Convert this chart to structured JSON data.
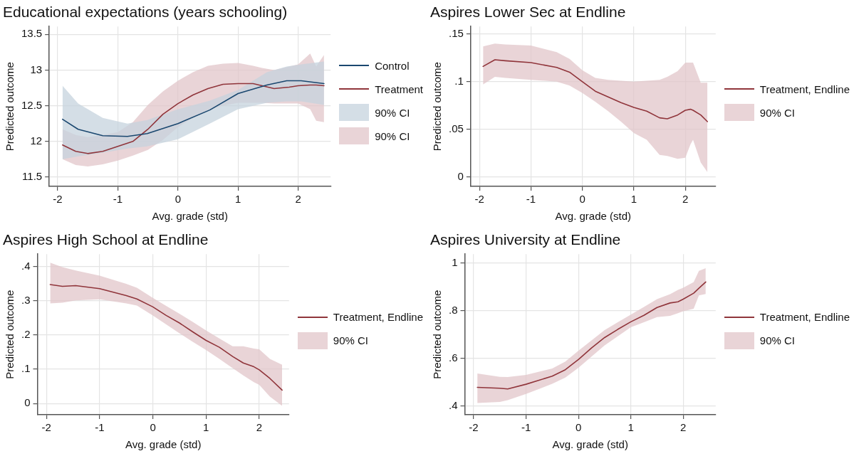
{
  "chart_data": [
    {
      "type": "line",
      "title": "Educational expectations (years schooling)",
      "xlabel": "Avg. grade (std)",
      "ylabel": "Predicted outcome",
      "xlim": [
        -2.14,
        2.54
      ],
      "ylim": [
        11.37,
        13.61
      ],
      "xticks": [
        -2,
        -1,
        0,
        1,
        2
      ],
      "yticks": [
        11.5,
        12,
        12.5,
        13,
        13.5
      ],
      "grid": true,
      "legend": "right",
      "marker": "none",
      "line_style": "solid",
      "series": [
        {
          "name": "Control",
          "color": "#1a476f",
          "x": [
            -1.92,
            -1.66,
            -1.25,
            -0.84,
            -0.51,
            0,
            0.53,
            1.0,
            1.48,
            1.81,
            2.05,
            2.43
          ],
          "values": [
            12.31,
            12.17,
            12.08,
            12.07,
            12.11,
            12.25,
            12.44,
            12.67,
            12.79,
            12.85,
            12.85,
            12.81
          ],
          "upper": [
            12.78,
            12.53,
            12.33,
            12.25,
            12.3,
            12.45,
            12.57,
            12.72,
            12.97,
            13.05,
            13.08,
            13.12
          ],
          "lower": [
            11.75,
            11.79,
            11.84,
            11.9,
            11.93,
            12.03,
            12.25,
            12.45,
            12.54,
            12.56,
            12.56,
            12.51
          ]
        },
        {
          "name": "Treatment",
          "color": "#90353b",
          "x": [
            -1.92,
            -1.7,
            -1.5,
            -1.25,
            -1.0,
            -0.75,
            -0.5,
            -0.25,
            0,
            0.25,
            0.5,
            0.75,
            1.0,
            1.25,
            1.4,
            1.6,
            1.85,
            2.0,
            2.2,
            2.3,
            2.43
          ],
          "values": [
            11.95,
            11.86,
            11.83,
            11.86,
            11.93,
            12.0,
            12.17,
            12.38,
            12.53,
            12.65,
            12.74,
            12.8,
            12.81,
            12.81,
            12.78,
            12.74,
            12.76,
            12.78,
            12.79,
            12.79,
            12.78
          ],
          "upper": [
            12.17,
            12.09,
            12.06,
            12.09,
            12.13,
            12.27,
            12.51,
            12.7,
            12.85,
            12.97,
            13.06,
            13.09,
            13.1,
            13.06,
            13.03,
            13.0,
            13.05,
            13.08,
            13.23,
            13.05,
            13.21
          ],
          "lower": [
            11.75,
            11.67,
            11.65,
            11.68,
            11.73,
            11.8,
            11.88,
            12.02,
            12.2,
            12.33,
            12.44,
            12.5,
            12.54,
            12.54,
            12.54,
            12.53,
            12.53,
            12.53,
            12.45,
            12.29,
            12.27
          ]
        },
        {
          "type": "area",
          "name": "90% CI",
          "color": "#c5d3dd"
        },
        {
          "type": "area",
          "name": "90% CI",
          "color": "#e2c6c9"
        }
      ]
    },
    {
      "type": "line",
      "title": "Aspires Lower Sec at Endline",
      "xlabel": "Avg. grade (std)",
      "ylabel": "Predicted outcome",
      "xlim": [
        -2.17,
        2.59
      ],
      "ylim": [
        -0.01,
        0.158
      ],
      "xticks": [
        -2,
        -1,
        0,
        1,
        2
      ],
      "yticks": [
        0,
        {
          "value": 0.05,
          "label": ".05"
        },
        {
          "value": 0.1,
          "label": ".1"
        },
        {
          "value": 0.15,
          "label": ".15"
        }
      ],
      "grid": true,
      "legend": "right",
      "marker": "none",
      "line_style": "solid",
      "series": [
        {
          "name": "Treatment, Endline",
          "color": "#90353b",
          "x": [
            -1.93,
            -1.7,
            -1.5,
            -1.0,
            -0.5,
            -0.25,
            0,
            0.25,
            0.5,
            0.75,
            1.0,
            1.25,
            1.5,
            1.65,
            1.85,
            2.0,
            2.1,
            2.15,
            2.3,
            2.43
          ],
          "values": [
            0.116,
            0.123,
            0.122,
            0.12,
            0.115,
            0.11,
            0.1,
            0.09,
            0.084,
            0.078,
            0.073,
            0.069,
            0.062,
            0.061,
            0.065,
            0.07,
            0.071,
            0.07,
            0.065,
            0.058
          ],
          "upper": [
            0.137,
            0.14,
            0.139,
            0.138,
            0.131,
            0.124,
            0.112,
            0.104,
            0.102,
            0.101,
            0.1,
            0.101,
            0.102,
            0.105,
            0.111,
            0.12,
            0.12,
            0.12,
            0.099,
            0.099
          ],
          "lower": [
            0.097,
            0.105,
            0.104,
            0.102,
            0.1,
            0.096,
            0.088,
            0.079,
            0.069,
            0.058,
            0.046,
            0.039,
            0.023,
            0.022,
            0.019,
            0.02,
            0.034,
            0.039,
            0.015,
            0.005
          ]
        },
        {
          "type": "area",
          "name": "90% CI",
          "color": "#e2c6c9"
        }
      ]
    },
    {
      "type": "line",
      "title": "Aspires High School at Endline",
      "xlabel": "Avg. grade (std)",
      "ylabel": "Predicted outcome",
      "xlim": [
        -2.17,
        2.56
      ],
      "ylim": [
        -0.033,
        0.436
      ],
      "xticks": [
        -2,
        -1,
        0,
        1,
        2
      ],
      "yticks": [
        0,
        {
          "value": 0.1,
          "label": ".1"
        },
        {
          "value": 0.2,
          "label": ".2"
        },
        {
          "value": 0.3,
          "label": ".3"
        },
        {
          "value": 0.4,
          "label": ".4"
        }
      ],
      "grid": true,
      "legend": "right",
      "marker": "none",
      "line_style": "solid",
      "series": [
        {
          "name": "Treatment, Endline",
          "color": "#90353b",
          "x": [
            -1.93,
            -1.7,
            -1.45,
            -1.0,
            -0.5,
            -0.3,
            0,
            0.25,
            0.5,
            0.75,
            1.0,
            1.25,
            1.5,
            1.7,
            1.9,
            2.0,
            2.2,
            2.43
          ],
          "values": [
            0.347,
            0.342,
            0.344,
            0.335,
            0.315,
            0.305,
            0.282,
            0.257,
            0.235,
            0.209,
            0.184,
            0.164,
            0.137,
            0.118,
            0.107,
            0.098,
            0.073,
            0.039
          ],
          "upper": [
            0.411,
            0.398,
            0.388,
            0.373,
            0.349,
            0.338,
            0.308,
            0.285,
            0.262,
            0.238,
            0.213,
            0.19,
            0.167,
            0.167,
            0.16,
            0.158,
            0.13,
            0.113
          ],
          "lower": [
            0.292,
            0.294,
            0.301,
            0.304,
            0.292,
            0.286,
            0.257,
            0.231,
            0.205,
            0.18,
            0.156,
            0.13,
            0.103,
            0.082,
            0.062,
            0.054,
            0.02,
            -0.007
          ]
        },
        {
          "type": "area",
          "name": "90% CI",
          "color": "#e2c6c9"
        }
      ]
    },
    {
      "type": "line",
      "title": "Aspires University at Endline",
      "xlabel": "Avg. grade (std)",
      "ylabel": "Predicted outcome",
      "xlim": [
        -2.17,
        2.62
      ],
      "ylim": [
        0.364,
        1.038
      ],
      "xticks": [
        -2,
        -1,
        0,
        1,
        2
      ],
      "yticks": [
        {
          "value": 0.4,
          "label": ".4"
        },
        {
          "value": 0.6,
          "label": ".6"
        },
        {
          "value": 0.8,
          "label": ".8"
        },
        1
      ],
      "grid": true,
      "legend": "right",
      "marker": "none",
      "line_style": "solid",
      "series": [
        {
          "name": "Treatment, Endline",
          "color": "#90353b",
          "x": [
            -1.93,
            -1.5,
            -1.35,
            -1.0,
            -0.5,
            -0.25,
            0,
            0.25,
            0.5,
            0.75,
            1.0,
            1.25,
            1.5,
            1.75,
            1.9,
            2.0,
            2.2,
            2.3,
            2.43
          ],
          "values": [
            0.479,
            0.475,
            0.472,
            0.492,
            0.526,
            0.553,
            0.596,
            0.644,
            0.688,
            0.722,
            0.754,
            0.781,
            0.814,
            0.833,
            0.838,
            0.849,
            0.874,
            0.895,
            0.921
          ],
          "upper": [
            0.537,
            0.523,
            0.522,
            0.531,
            0.558,
            0.587,
            0.633,
            0.676,
            0.719,
            0.752,
            0.784,
            0.816,
            0.849,
            0.87,
            0.888,
            0.897,
            0.921,
            0.968,
            0.979
          ],
          "lower": [
            0.413,
            0.418,
            0.425,
            0.451,
            0.494,
            0.52,
            0.561,
            0.608,
            0.655,
            0.693,
            0.731,
            0.752,
            0.774,
            0.779,
            0.79,
            0.798,
            0.809,
            0.865,
            0.871
          ]
        },
        {
          "type": "area",
          "name": "90% CI",
          "color": "#e2c6c9"
        }
      ]
    }
  ]
}
